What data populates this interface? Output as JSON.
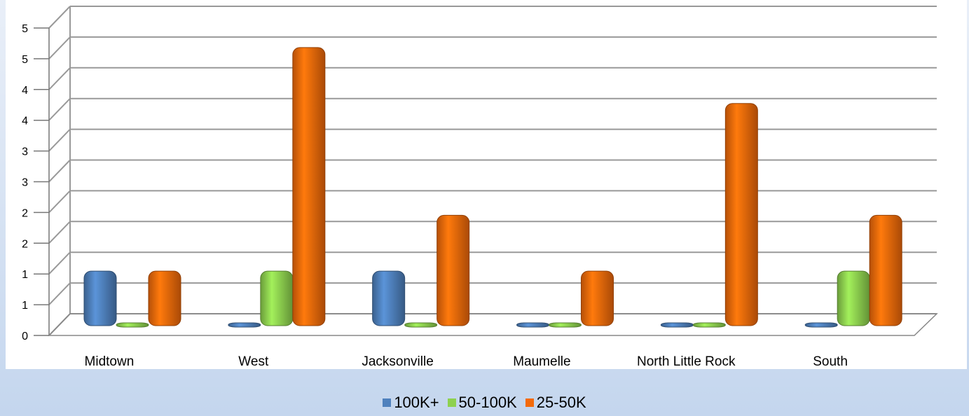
{
  "chart_data": {
    "type": "bar",
    "title": "",
    "xlabel": "",
    "ylabel": "",
    "categories": [
      "Midtown",
      "West",
      "Jacksonville",
      "Maumelle",
      "North Little Rock",
      "South"
    ],
    "series": [
      {
        "name": "100K+",
        "color": "#4f81bd",
        "values": [
          1,
          0,
          1,
          0,
          0,
          0
        ]
      },
      {
        "name": "50-100K",
        "color": "#8ed14f",
        "values": [
          0,
          1,
          0,
          0,
          0,
          1
        ]
      },
      {
        "name": "25-50K",
        "color": "#f36a0a",
        "values": [
          1,
          5,
          2,
          1,
          4,
          2
        ]
      }
    ],
    "y_ticks": [
      "0",
      "1",
      "1",
      "2",
      "2",
      "3",
      "3",
      "4",
      "4",
      "5",
      "5"
    ],
    "ylim": [
      0,
      5.5
    ],
    "grid": true,
    "legend_position": "bottom"
  }
}
